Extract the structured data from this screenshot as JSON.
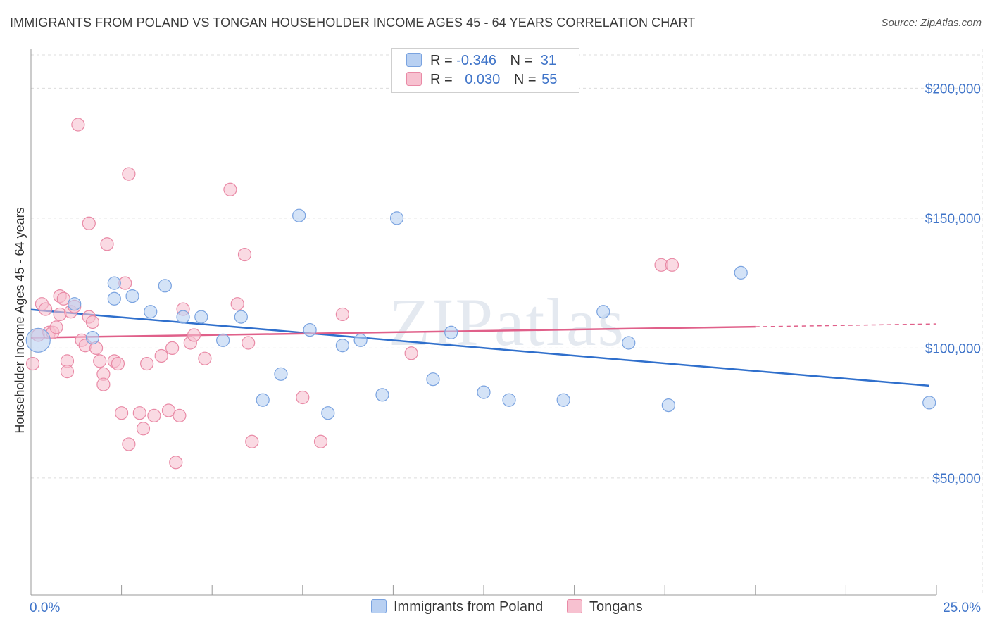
{
  "header": {
    "title": "IMMIGRANTS FROM POLAND VS TONGAN HOUSEHOLDER INCOME AGES 45 - 64 YEARS CORRELATION CHART",
    "source": "Source: ZipAtlas.com"
  },
  "legend": {
    "rows": [
      {
        "r_label": "R =",
        "r_value": "-0.346",
        "n_label": "N =",
        "n_value": "31"
      },
      {
        "r_label": "R =",
        "r_value": "0.030",
        "n_label": "N =",
        "n_value": "55"
      }
    ]
  },
  "bottom_legend": {
    "items": [
      {
        "label": "Immigrants from Poland"
      },
      {
        "label": "Tongans"
      }
    ]
  },
  "watermark": "ZIPatlas",
  "colors": {
    "blue_fill": "#b8d0f2",
    "blue_stroke": "#7aa3e0",
    "blue_line": "#2f6fcc",
    "pink_fill": "#f7c1d0",
    "pink_stroke": "#e98aa6",
    "pink_line": "#e0608a",
    "axis_label": "#3f74c9"
  },
  "chart_data": {
    "type": "scatter",
    "title": "IMMIGRANTS FROM POLAND VS TONGAN HOUSEHOLDER INCOME AGES 45 - 64 YEARS CORRELATION CHART",
    "xlabel": "",
    "ylabel": "Householder Income Ages 45 - 64 years",
    "xlim": [
      0,
      25
    ],
    "ylim": [
      5000,
      215000
    ],
    "x_tick_labels": [
      "0.0%",
      "25.0%"
    ],
    "y_ticks": [
      50000,
      100000,
      150000,
      200000
    ],
    "y_tick_labels": [
      "$50,000",
      "$100,000",
      "$150,000",
      "$200,000"
    ],
    "grid": true,
    "series": [
      {
        "name": "Immigrants from Poland",
        "points": [
          [
            0.2,
            103000
          ],
          [
            1.2,
            117000
          ],
          [
            1.7,
            104000
          ],
          [
            2.3,
            119000
          ],
          [
            2.3,
            125000
          ],
          [
            2.8,
            120000
          ],
          [
            3.3,
            114000
          ],
          [
            3.7,
            124000
          ],
          [
            4.2,
            112000
          ],
          [
            4.7,
            112000
          ],
          [
            5.3,
            103000
          ],
          [
            5.8,
            112000
          ],
          [
            6.4,
            80000
          ],
          [
            6.9,
            90000
          ],
          [
            7.4,
            151000
          ],
          [
            7.7,
            107000
          ],
          [
            8.2,
            75000
          ],
          [
            8.6,
            101000
          ],
          [
            9.1,
            103000
          ],
          [
            9.7,
            82000
          ],
          [
            10.1,
            150000
          ],
          [
            11.1,
            88000
          ],
          [
            11.6,
            106000
          ],
          [
            12.5,
            83000
          ],
          [
            13.2,
            80000
          ],
          [
            14.7,
            80000
          ],
          [
            15.8,
            114000
          ],
          [
            16.5,
            102000
          ],
          [
            17.6,
            78000
          ],
          [
            19.6,
            129000
          ],
          [
            24.8,
            79000
          ]
        ],
        "trend": {
          "x0": 0,
          "y0": 114800,
          "x1": 24.8,
          "y1": 85500
        }
      },
      {
        "name": "Tongans",
        "points": [
          [
            0.05,
            94000
          ],
          [
            0.2,
            105000
          ],
          [
            0.3,
            117000
          ],
          [
            0.4,
            115000
          ],
          [
            0.5,
            106000
          ],
          [
            0.6,
            106000
          ],
          [
            0.7,
            108000
          ],
          [
            0.8,
            113000
          ],
          [
            0.8,
            120000
          ],
          [
            0.9,
            119000
          ],
          [
            1.0,
            95000
          ],
          [
            1.0,
            91000
          ],
          [
            1.1,
            114000
          ],
          [
            1.2,
            116000
          ],
          [
            1.3,
            186000
          ],
          [
            1.4,
            103000
          ],
          [
            1.5,
            101000
          ],
          [
            1.6,
            112000
          ],
          [
            1.6,
            148000
          ],
          [
            1.7,
            110000
          ],
          [
            1.8,
            100000
          ],
          [
            1.9,
            95000
          ],
          [
            2.0,
            90000
          ],
          [
            2.0,
            86000
          ],
          [
            2.1,
            140000
          ],
          [
            2.3,
            95000
          ],
          [
            2.4,
            94000
          ],
          [
            2.5,
            75000
          ],
          [
            2.6,
            125000
          ],
          [
            2.7,
            63000
          ],
          [
            2.7,
            167000
          ],
          [
            3.0,
            75000
          ],
          [
            3.1,
            69000
          ],
          [
            3.2,
            94000
          ],
          [
            3.4,
            74000
          ],
          [
            3.6,
            97000
          ],
          [
            3.8,
            76000
          ],
          [
            3.9,
            100000
          ],
          [
            4.0,
            56000
          ],
          [
            4.1,
            74000
          ],
          [
            4.2,
            115000
          ],
          [
            4.4,
            102000
          ],
          [
            4.5,
            105000
          ],
          [
            4.8,
            96000
          ],
          [
            5.5,
            161000
          ],
          [
            5.7,
            117000
          ],
          [
            5.9,
            136000
          ],
          [
            6.0,
            102000
          ],
          [
            6.1,
            64000
          ],
          [
            7.5,
            81000
          ],
          [
            8.0,
            64000
          ],
          [
            8.6,
            113000
          ],
          [
            10.5,
            98000
          ],
          [
            17.4,
            132000
          ],
          [
            17.7,
            132000
          ]
        ],
        "trend": {
          "x0": 0,
          "y0": 104000,
          "x1": 20,
          "y1": 108200
        },
        "trend_dashed": {
          "x0": 20,
          "y0": 108200,
          "x1": 25,
          "y1": 109300
        }
      }
    ]
  }
}
